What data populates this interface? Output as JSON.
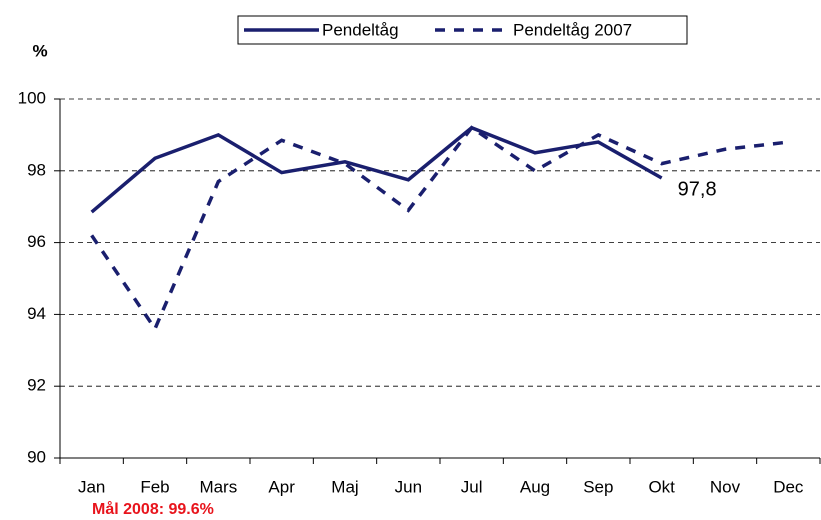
{
  "chart_data": {
    "type": "line",
    "y_axis_label": "%",
    "annotation": "Mål 2008: 99.6%",
    "categories": [
      "Jan",
      "Feb",
      "Mars",
      "Apr",
      "Maj",
      "Jun",
      "Jul",
      "Aug",
      "Sep",
      "Okt",
      "Nov",
      "Dec"
    ],
    "series": [
      {
        "name": "Pendeltåg",
        "color": "#1a1f6e",
        "style": "solid",
        "values": [
          96.85,
          98.35,
          99.0,
          97.95,
          98.25,
          97.75,
          99.2,
          98.5,
          98.8,
          97.8,
          null,
          null
        ],
        "value_labels": [
          null,
          null,
          null,
          null,
          null,
          null,
          null,
          null,
          null,
          "97,8",
          null,
          null
        ]
      },
      {
        "name": "Pendeltåg 2007",
        "color": "#1a1f6e",
        "style": "dashed",
        "values": [
          96.2,
          93.6,
          97.7,
          98.85,
          98.2,
          96.9,
          99.2,
          98.0,
          99.0,
          98.2,
          98.6,
          98.8
        ]
      }
    ],
    "ylim": [
      90,
      100
    ],
    "yticks": [
      90,
      92,
      94,
      96,
      98,
      100
    ],
    "grid": true
  }
}
